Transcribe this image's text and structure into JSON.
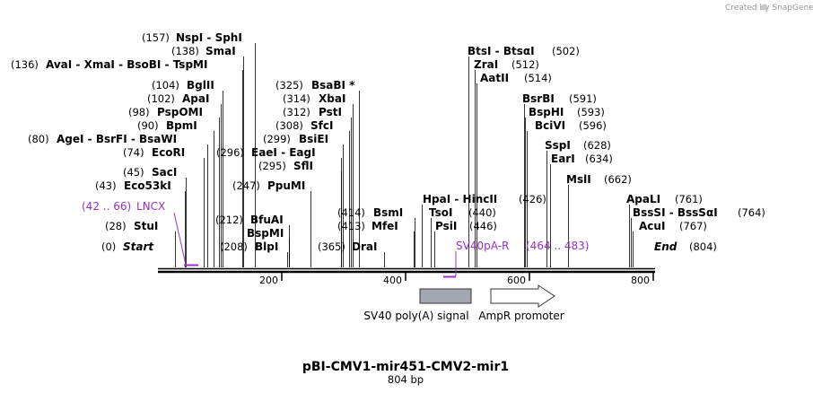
{
  "credit": "Created by SnapGene",
  "title": "pBI-CMV1-mir451-CMV2-mir1",
  "length_label": "804 bp",
  "sequence_length": 804,
  "colors": {
    "primer": "#9b30c8",
    "feature_gray": "#a3a8b0",
    "line": "#000000"
  },
  "ticks": [
    {
      "pos": 200,
      "label": "200"
    },
    {
      "pos": 400,
      "label": "400"
    },
    {
      "pos": 600,
      "label": "600"
    },
    {
      "pos": 800,
      "label": "800"
    }
  ],
  "ends": [
    {
      "name": "Start",
      "pos_label": "(0)",
      "pos": 0
    },
    {
      "name": "End",
      "pos_label": "(804)",
      "pos": 804
    }
  ],
  "sites": [
    {
      "id": "nspi-sphi",
      "pos_label": "(157)",
      "name": "NspI  -  SphI",
      "pos": 157
    },
    {
      "id": "smai",
      "pos_label": "(138)",
      "name": "SmaI",
      "pos": 138
    },
    {
      "id": "avai-group",
      "pos_label": "(136)",
      "name": "AvaI  -  XmaI  -  BsoBI  -  TspMI",
      "pos": 136
    },
    {
      "id": "bglii",
      "pos_label": "(104)",
      "name": "BglII",
      "pos": 104
    },
    {
      "id": "apai",
      "pos_label": "(102)",
      "name": "ApaI",
      "pos": 102
    },
    {
      "id": "pspomi",
      "pos_label": "(98)",
      "name": "PspOMI",
      "pos": 98
    },
    {
      "id": "bpmi",
      "pos_label": "(90)",
      "name": "BpmI",
      "pos": 90
    },
    {
      "id": "agei-group",
      "pos_label": "(80)",
      "name": "AgeI  -  BsrFI  -  BsaWI",
      "pos": 80
    },
    {
      "id": "ecori",
      "pos_label": "(74)",
      "name": "EcoRI",
      "pos": 74
    },
    {
      "id": "saci",
      "pos_label": "(45)",
      "name": "SacI",
      "pos": 45
    },
    {
      "id": "eco53ki",
      "pos_label": "(43)",
      "name": "Eco53kI",
      "pos": 43
    },
    {
      "id": "stui",
      "pos_label": "(28)",
      "name": "StuI",
      "pos": 28
    },
    {
      "id": "bsabi",
      "pos_label": "(325)",
      "name": "BsaBI *",
      "pos": 325
    },
    {
      "id": "xbai",
      "pos_label": "(314)",
      "name": "XbaI",
      "pos": 314
    },
    {
      "id": "psti",
      "pos_label": "(312)",
      "name": "PstI",
      "pos": 312
    },
    {
      "id": "sfci",
      "pos_label": "(308)",
      "name": "SfcI",
      "pos": 308
    },
    {
      "id": "bsiei",
      "pos_label": "(299)",
      "name": "BsiEI",
      "pos": 299
    },
    {
      "id": "eaei-eagi",
      "pos_label": "(296)",
      "name": "EaeI  -  EagI",
      "pos": 296
    },
    {
      "id": "sfli",
      "pos_label": "(295)",
      "name": "SflI",
      "pos": 295
    },
    {
      "id": "ppumi",
      "pos_label": "(247)",
      "name": "PpuMI",
      "pos": 247
    },
    {
      "id": "bfuai",
      "pos_label": "(212)",
      "name": "BfuAI",
      "pos": 212
    },
    {
      "id": "bspmi",
      "pos_label": "",
      "name": "BspMI",
      "pos": 212
    },
    {
      "id": "blpi",
      "pos_label": "(208)",
      "name": "BlpI",
      "pos": 208
    },
    {
      "id": "bsmi",
      "pos_label": "(414)",
      "name": "BsmI",
      "pos": 414
    },
    {
      "id": "mfei",
      "pos_label": "(413)",
      "name": "MfeI",
      "pos": 413
    },
    {
      "id": "drai",
      "pos_label": "(365)",
      "name": "DraI",
      "pos": 365
    },
    {
      "id": "hpai-hincii",
      "pos_label": "(426)",
      "name": "HpaI  -  HincII",
      "pos": 426
    },
    {
      "id": "tsoi",
      "pos_label": "(440)",
      "name": "TsoI",
      "pos": 440
    },
    {
      "id": "psii",
      "pos_label": "(446)",
      "name": "PsiI",
      "pos": 446
    },
    {
      "id": "btsi-btsai",
      "pos_label": "(502)",
      "name": "BtsI  -  BtsαI",
      "pos": 502
    },
    {
      "id": "zrai",
      "pos_label": "(512)",
      "name": "ZraI",
      "pos": 512
    },
    {
      "id": "aatii",
      "pos_label": "(514)",
      "name": "AatII",
      "pos": 514
    },
    {
      "id": "bsrbi",
      "pos_label": "(591)",
      "name": "BsrBI",
      "pos": 591
    },
    {
      "id": "bsphi",
      "pos_label": "(593)",
      "name": "BspHI",
      "pos": 593
    },
    {
      "id": "bcivi",
      "pos_label": "(596)",
      "name": "BciVI",
      "pos": 596
    },
    {
      "id": "sspi",
      "pos_label": "(628)",
      "name": "SspI",
      "pos": 628
    },
    {
      "id": "eari",
      "pos_label": "(634)",
      "name": "EarI",
      "pos": 634
    },
    {
      "id": "msli",
      "pos_label": "(662)",
      "name": "MslI",
      "pos": 662
    },
    {
      "id": "apali",
      "pos_label": "(761)",
      "name": "ApaLI",
      "pos": 761
    },
    {
      "id": "bsssi",
      "pos_label": "(764)",
      "name": "BssSI  -  BssSαI",
      "pos": 764
    },
    {
      "id": "acui",
      "pos_label": "(767)",
      "name": "AcuI",
      "pos": 767
    }
  ],
  "primers": [
    {
      "name": "LNCX",
      "range_label": "(42 .. 66)",
      "start": 42,
      "end": 66
    },
    {
      "name": "SV40pA-R",
      "range_label": "(464 .. 483)",
      "start": 464,
      "end": 483
    }
  ],
  "features": [
    {
      "name": "SV40 poly(A) signal",
      "type": "box",
      "start": 424,
      "end": 507
    },
    {
      "name": "AmpR promoter",
      "type": "arrow",
      "start": 530,
      "end": 635
    }
  ]
}
